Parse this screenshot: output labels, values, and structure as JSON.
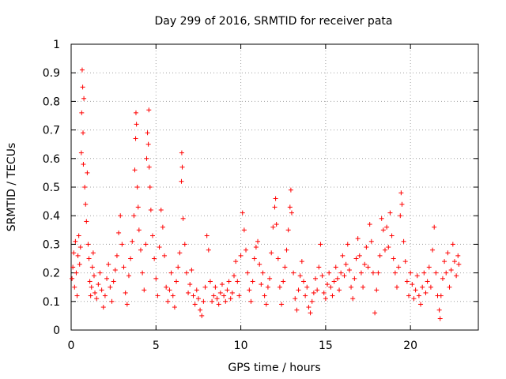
{
  "chart_data": {
    "type": "scatter",
    "title": "Day 299 of 2016, SRMTID for receiver pata",
    "xlabel": "GPS time / hours",
    "ylabel": "SRMTID / TECUs",
    "xlim": [
      0,
      24
    ],
    "ylim": [
      0,
      1
    ],
    "xticks": [
      0,
      5,
      10,
      15,
      20
    ],
    "xtick_labels": [
      "0",
      "5",
      "10",
      "15",
      "20"
    ],
    "yticks": [
      0,
      0.1,
      0.2,
      0.3,
      0.4,
      0.5,
      0.6,
      0.7,
      0.8,
      0.9,
      1
    ],
    "ytick_labels": [
      "0",
      "0.1",
      "0.2",
      "0.3",
      "0.4",
      "0.5",
      "0.6",
      "0.7",
      "0.8",
      "0.9",
      "1"
    ],
    "grid": true,
    "marker": "+",
    "color": "#ff0000",
    "series": [
      {
        "name": "SRMTID",
        "points": [
          [
            0.05,
            0.18
          ],
          [
            0.1,
            0.22
          ],
          [
            0.15,
            0.27
          ],
          [
            0.2,
            0.15
          ],
          [
            0.25,
            0.31
          ],
          [
            0.3,
            0.2
          ],
          [
            0.35,
            0.12
          ],
          [
            0.4,
            0.26
          ],
          [
            0.45,
            0.33
          ],
          [
            0.5,
            0.23
          ],
          [
            0.55,
            0.29
          ],
          [
            0.6,
            0.62
          ],
          [
            0.62,
            0.76
          ],
          [
            0.65,
            0.91
          ],
          [
            0.68,
            0.85
          ],
          [
            0.7,
            0.69
          ],
          [
            0.72,
            0.58
          ],
          [
            0.75,
            0.81
          ],
          [
            0.8,
            0.5
          ],
          [
            0.85,
            0.44
          ],
          [
            0.9,
            0.38
          ],
          [
            0.95,
            0.55
          ],
          [
            1.0,
            0.3
          ],
          [
            1.05,
            0.25
          ],
          [
            1.1,
            0.17
          ],
          [
            1.15,
            0.12
          ],
          [
            1.2,
            0.15
          ],
          [
            1.25,
            0.22
          ],
          [
            1.3,
            0.27
          ],
          [
            1.35,
            0.19
          ],
          [
            1.4,
            0.13
          ],
          [
            1.5,
            0.11
          ],
          [
            1.6,
            0.16
          ],
          [
            1.7,
            0.2
          ],
          [
            1.8,
            0.14
          ],
          [
            1.9,
            0.08
          ],
          [
            2.0,
            0.12
          ],
          [
            2.1,
            0.18
          ],
          [
            2.2,
            0.23
          ],
          [
            2.3,
            0.15
          ],
          [
            2.4,
            0.1
          ],
          [
            2.5,
            0.17
          ],
          [
            2.6,
            0.21
          ],
          [
            2.7,
            0.26
          ],
          [
            2.8,
            0.34
          ],
          [
            2.9,
            0.4
          ],
          [
            3.0,
            0.3
          ],
          [
            3.1,
            0.22
          ],
          [
            3.2,
            0.13
          ],
          [
            3.3,
            0.09
          ],
          [
            3.4,
            0.19
          ],
          [
            3.5,
            0.25
          ],
          [
            3.6,
            0.31
          ],
          [
            3.7,
            0.4
          ],
          [
            3.75,
            0.56
          ],
          [
            3.8,
            0.67
          ],
          [
            3.82,
            0.76
          ],
          [
            3.85,
            0.72
          ],
          [
            3.9,
            0.5
          ],
          [
            3.95,
            0.43
          ],
          [
            4.0,
            0.35
          ],
          [
            4.1,
            0.28
          ],
          [
            4.2,
            0.2
          ],
          [
            4.3,
            0.14
          ],
          [
            4.4,
            0.3
          ],
          [
            4.45,
            0.6
          ],
          [
            4.5,
            0.69
          ],
          [
            4.55,
            0.65
          ],
          [
            4.58,
            0.77
          ],
          [
            4.6,
            0.57
          ],
          [
            4.65,
            0.5
          ],
          [
            4.7,
            0.42
          ],
          [
            4.8,
            0.33
          ],
          [
            4.9,
            0.25
          ],
          [
            5.0,
            0.18
          ],
          [
            5.1,
            0.12
          ],
          [
            5.2,
            0.29
          ],
          [
            5.3,
            0.42
          ],
          [
            5.4,
            0.36
          ],
          [
            5.5,
            0.26
          ],
          [
            5.6,
            0.15
          ],
          [
            5.7,
            0.1
          ],
          [
            5.8,
            0.14
          ],
          [
            5.9,
            0.2
          ],
          [
            6.0,
            0.12
          ],
          [
            6.1,
            0.08
          ],
          [
            6.2,
            0.17
          ],
          [
            6.3,
            0.22
          ],
          [
            6.4,
            0.27
          ],
          [
            6.5,
            0.52
          ],
          [
            6.52,
            0.62
          ],
          [
            6.55,
            0.57
          ],
          [
            6.6,
            0.39
          ],
          [
            6.7,
            0.3
          ],
          [
            6.8,
            0.2
          ],
          [
            6.9,
            0.13
          ],
          [
            7.0,
            0.16
          ],
          [
            7.1,
            0.21
          ],
          [
            7.2,
            0.12
          ],
          [
            7.3,
            0.09
          ],
          [
            7.4,
            0.14
          ],
          [
            7.5,
            0.11
          ],
          [
            7.6,
            0.07
          ],
          [
            7.7,
            0.05
          ],
          [
            7.8,
            0.1
          ],
          [
            7.9,
            0.15
          ],
          [
            8.0,
            0.33
          ],
          [
            8.1,
            0.28
          ],
          [
            8.2,
            0.17
          ],
          [
            8.3,
            0.1
          ],
          [
            8.4,
            0.12
          ],
          [
            8.5,
            0.15
          ],
          [
            8.6,
            0.11
          ],
          [
            8.7,
            0.09
          ],
          [
            8.8,
            0.13
          ],
          [
            8.9,
            0.16
          ],
          [
            9.0,
            0.12
          ],
          [
            9.1,
            0.1
          ],
          [
            9.2,
            0.14
          ],
          [
            9.3,
            0.17
          ],
          [
            9.4,
            0.11
          ],
          [
            9.5,
            0.13
          ],
          [
            9.6,
            0.19
          ],
          [
            9.7,
            0.24
          ],
          [
            9.8,
            0.17
          ],
          [
            9.9,
            0.12
          ],
          [
            10.0,
            0.26
          ],
          [
            10.1,
            0.41
          ],
          [
            10.2,
            0.35
          ],
          [
            10.3,
            0.28
          ],
          [
            10.4,
            0.2
          ],
          [
            10.5,
            0.14
          ],
          [
            10.6,
            0.1
          ],
          [
            10.7,
            0.17
          ],
          [
            10.8,
            0.25
          ],
          [
            10.9,
            0.29
          ],
          [
            11.0,
            0.31
          ],
          [
            11.1,
            0.23
          ],
          [
            11.2,
            0.16
          ],
          [
            11.3,
            0.2
          ],
          [
            11.4,
            0.12
          ],
          [
            11.5,
            0.09
          ],
          [
            11.6,
            0.15
          ],
          [
            11.7,
            0.18
          ],
          [
            11.8,
            0.27
          ],
          [
            11.9,
            0.36
          ],
          [
            12.0,
            0.43
          ],
          [
            12.05,
            0.46
          ],
          [
            12.1,
            0.37
          ],
          [
            12.2,
            0.25
          ],
          [
            12.3,
            0.15
          ],
          [
            12.4,
            0.09
          ],
          [
            12.5,
            0.17
          ],
          [
            12.6,
            0.22
          ],
          [
            12.7,
            0.28
          ],
          [
            12.8,
            0.35
          ],
          [
            12.9,
            0.43
          ],
          [
            12.95,
            0.49
          ],
          [
            13.0,
            0.41
          ],
          [
            13.1,
            0.2
          ],
          [
            13.2,
            0.11
          ],
          [
            13.3,
            0.07
          ],
          [
            13.4,
            0.14
          ],
          [
            13.5,
            0.19
          ],
          [
            13.6,
            0.24
          ],
          [
            13.7,
            0.17
          ],
          [
            13.8,
            0.12
          ],
          [
            13.9,
            0.15
          ],
          [
            14.0,
            0.08
          ],
          [
            14.1,
            0.06
          ],
          [
            14.2,
            0.1
          ],
          [
            14.3,
            0.13
          ],
          [
            14.4,
            0.18
          ],
          [
            14.5,
            0.14
          ],
          [
            14.6,
            0.22
          ],
          [
            14.7,
            0.3
          ],
          [
            14.8,
            0.19
          ],
          [
            14.9,
            0.13
          ],
          [
            15.0,
            0.11
          ],
          [
            15.1,
            0.16
          ],
          [
            15.2,
            0.2
          ],
          [
            15.3,
            0.15
          ],
          [
            15.4,
            0.12
          ],
          [
            15.5,
            0.17
          ],
          [
            15.6,
            0.22
          ],
          [
            15.7,
            0.18
          ],
          [
            15.8,
            0.14
          ],
          [
            15.9,
            0.2
          ],
          [
            16.0,
            0.26
          ],
          [
            16.1,
            0.19
          ],
          [
            16.2,
            0.23
          ],
          [
            16.3,
            0.3
          ],
          [
            16.4,
            0.21
          ],
          [
            16.5,
            0.15
          ],
          [
            16.6,
            0.11
          ],
          [
            16.7,
            0.18
          ],
          [
            16.8,
            0.25
          ],
          [
            16.9,
            0.32
          ],
          [
            17.0,
            0.26
          ],
          [
            17.1,
            0.2
          ],
          [
            17.2,
            0.15
          ],
          [
            17.3,
            0.23
          ],
          [
            17.4,
            0.29
          ],
          [
            17.5,
            0.22
          ],
          [
            17.6,
            0.37
          ],
          [
            17.7,
            0.31
          ],
          [
            17.8,
            0.2
          ],
          [
            17.9,
            0.06
          ],
          [
            18.0,
            0.14
          ],
          [
            18.1,
            0.2
          ],
          [
            18.2,
            0.26
          ],
          [
            18.3,
            0.39
          ],
          [
            18.4,
            0.35
          ],
          [
            18.5,
            0.28
          ],
          [
            18.6,
            0.36
          ],
          [
            18.7,
            0.29
          ],
          [
            18.8,
            0.41
          ],
          [
            18.9,
            0.33
          ],
          [
            19.0,
            0.25
          ],
          [
            19.1,
            0.2
          ],
          [
            19.2,
            0.15
          ],
          [
            19.3,
            0.22
          ],
          [
            19.4,
            0.4
          ],
          [
            19.45,
            0.48
          ],
          [
            19.5,
            0.44
          ],
          [
            19.6,
            0.31
          ],
          [
            19.7,
            0.24
          ],
          [
            19.8,
            0.17
          ],
          [
            19.9,
            0.12
          ],
          [
            20.0,
            0.2
          ],
          [
            20.1,
            0.16
          ],
          [
            20.2,
            0.11
          ],
          [
            20.3,
            0.14
          ],
          [
            20.4,
            0.19
          ],
          [
            20.5,
            0.12
          ],
          [
            20.6,
            0.09
          ],
          [
            20.7,
            0.15
          ],
          [
            20.8,
            0.2
          ],
          [
            20.9,
            0.13
          ],
          [
            21.0,
            0.17
          ],
          [
            21.1,
            0.22
          ],
          [
            21.2,
            0.15
          ],
          [
            21.3,
            0.28
          ],
          [
            21.4,
            0.36
          ],
          [
            21.5,
            0.2
          ],
          [
            21.6,
            0.12
          ],
          [
            21.7,
            0.07
          ],
          [
            21.75,
            0.04
          ],
          [
            21.8,
            0.12
          ],
          [
            21.9,
            0.18
          ],
          [
            22.0,
            0.24
          ],
          [
            22.1,
            0.2
          ],
          [
            22.2,
            0.27
          ],
          [
            22.3,
            0.15
          ],
          [
            22.4,
            0.21
          ],
          [
            22.5,
            0.3
          ],
          [
            22.6,
            0.24
          ],
          [
            22.7,
            0.19
          ],
          [
            22.8,
            0.26
          ],
          [
            22.85,
            0.23
          ]
        ]
      }
    ]
  }
}
